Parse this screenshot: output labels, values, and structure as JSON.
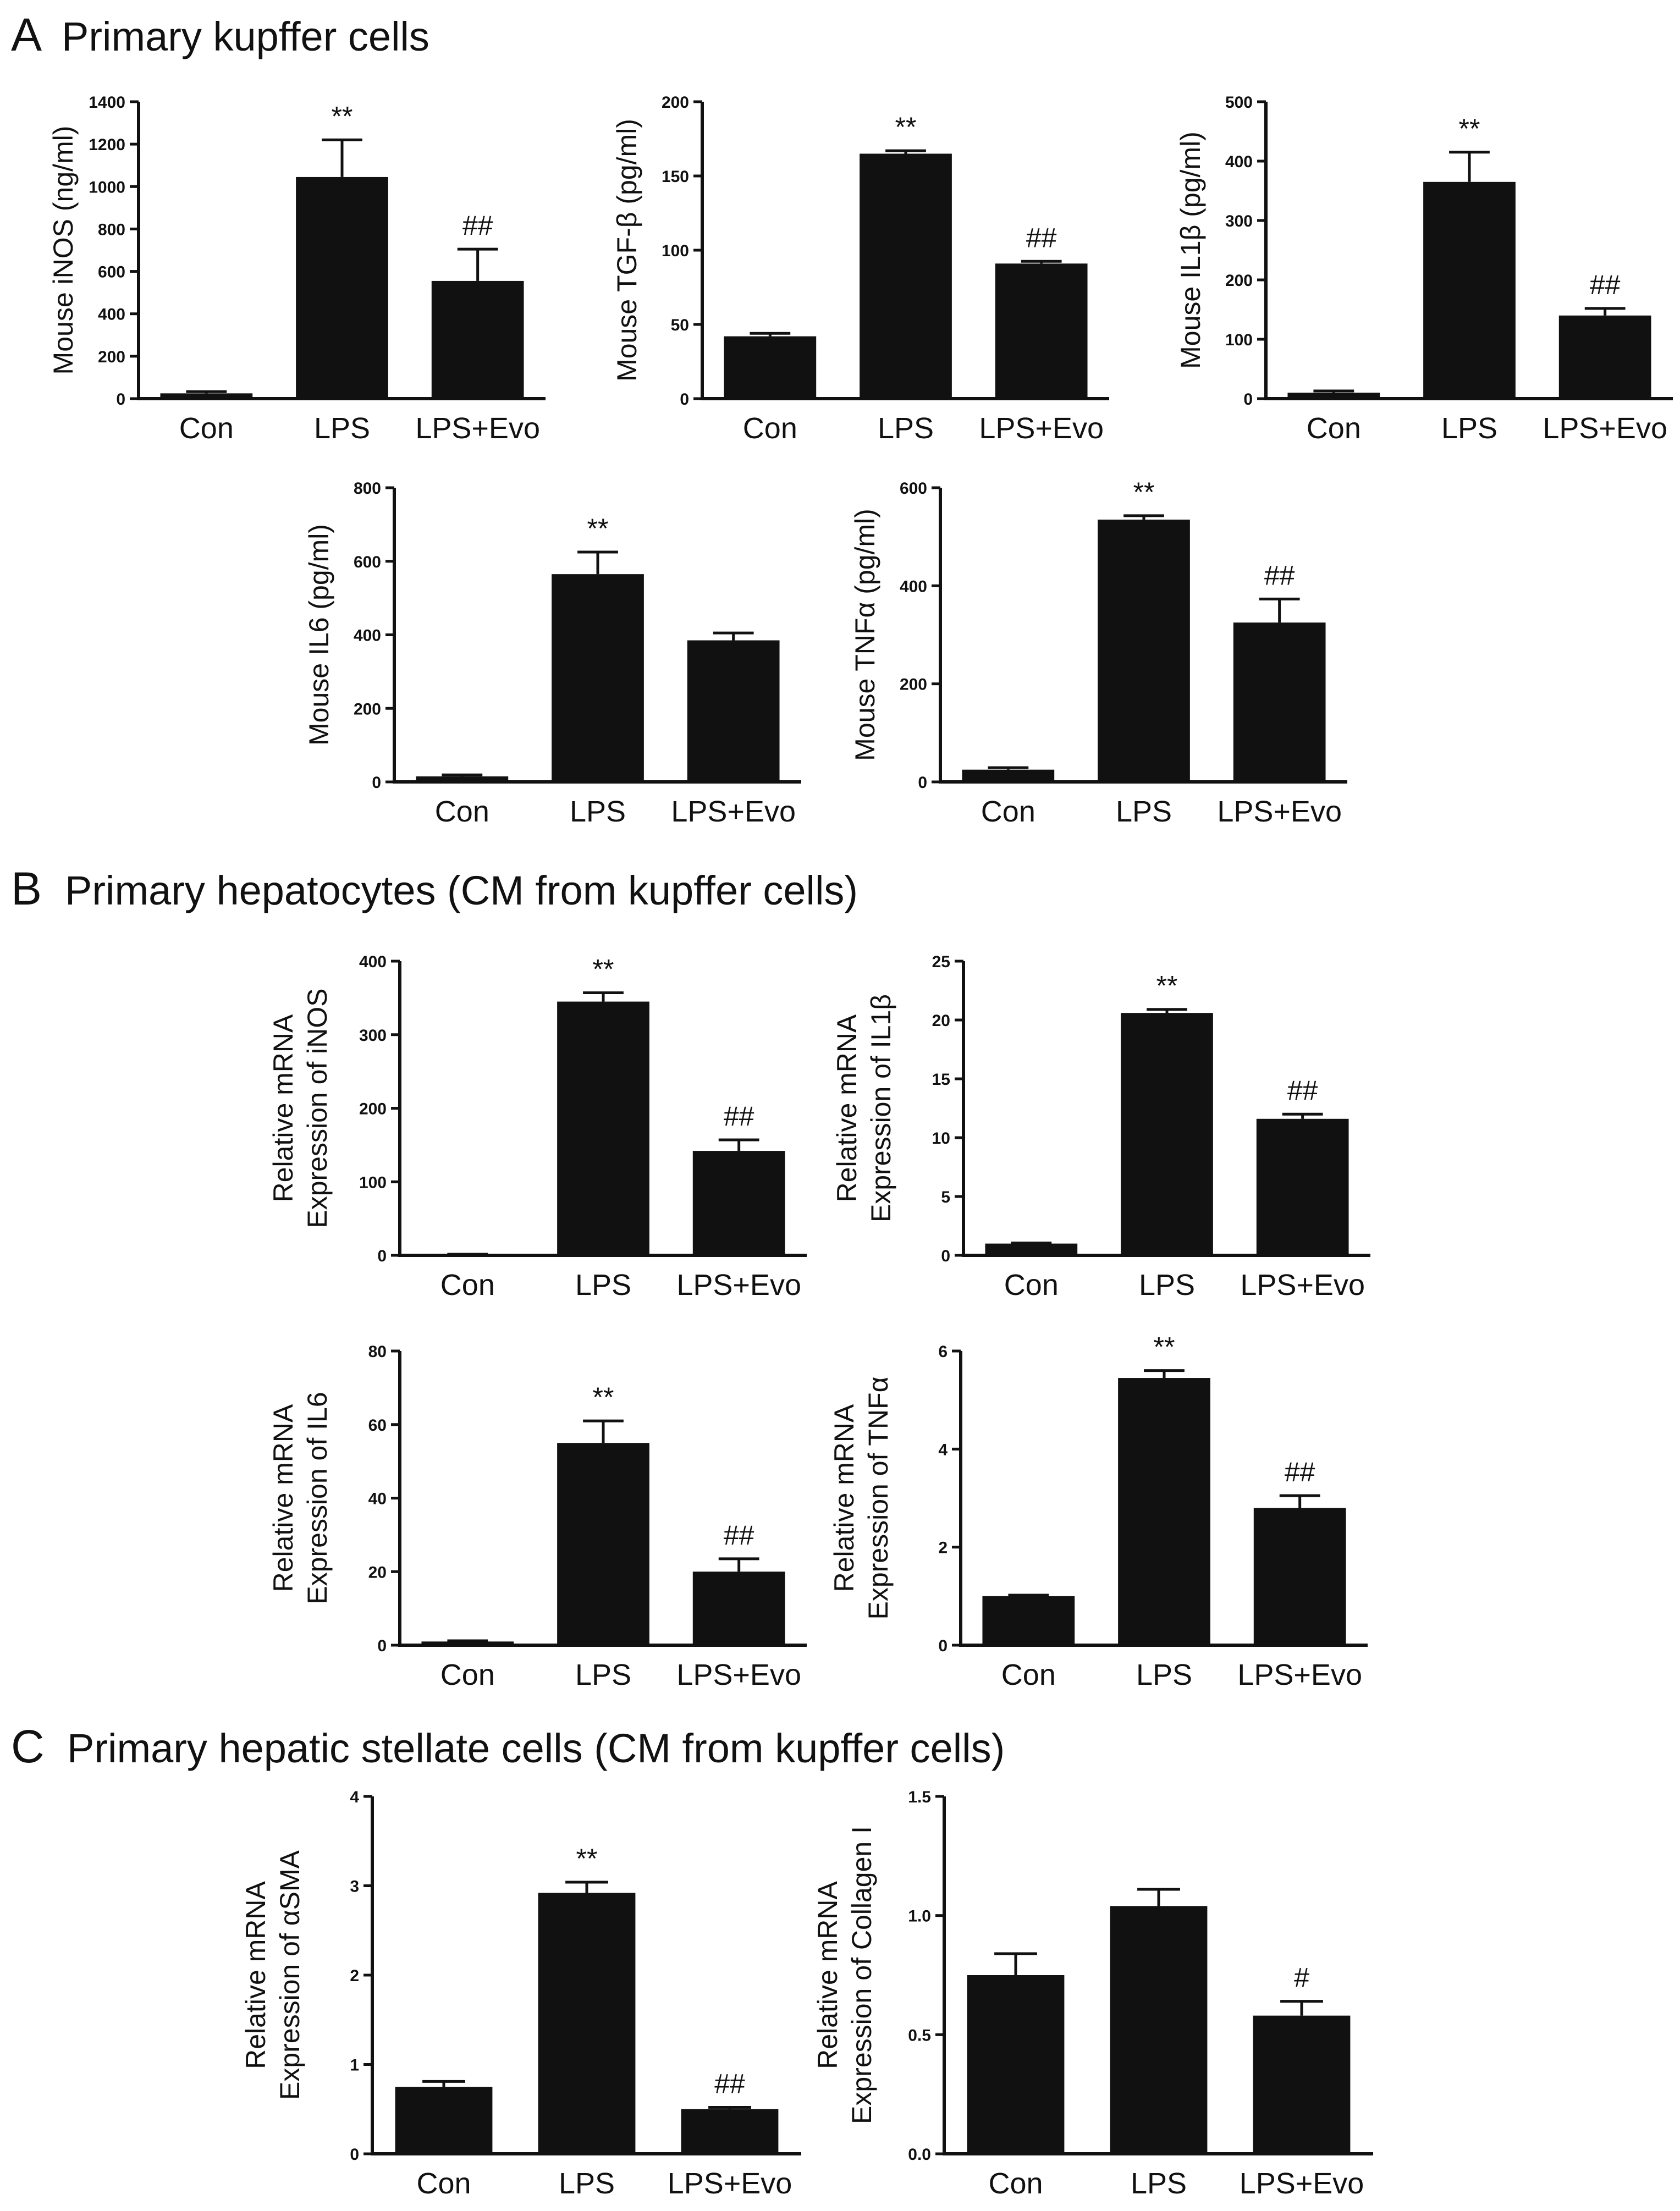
{
  "figure": {
    "sections": [
      {
        "letter": "A",
        "title": "Primary kupffer cells"
      },
      {
        "letter": "B",
        "title": "Primary hepatocytes (CM from kupffer cells)"
      },
      {
        "letter": "C",
        "title": "Primary hepatic stellate cells (CM from kupffer cells)"
      }
    ],
    "bar_color": "#111111"
  },
  "chart_data": [
    {
      "id": "a1",
      "type": "bar",
      "section": "A",
      "ylabel": [
        "Mouse iNOS (ng/ml)"
      ],
      "categories": [
        "Con",
        "LPS",
        "LPS+Evo"
      ],
      "values": [
        25,
        1045,
        555
      ],
      "errors": [
        8,
        175,
        150
      ],
      "annotations": [
        "",
        "**",
        "##"
      ],
      "ylim": [
        0,
        1400
      ],
      "yticks": [
        0,
        200,
        400,
        600,
        800,
        1000,
        1200,
        1400
      ]
    },
    {
      "id": "a2",
      "type": "bar",
      "section": "A",
      "ylabel": [
        "Mouse TGF-β (pg/ml)"
      ],
      "categories": [
        "Con",
        "LPS",
        "LPS+Evo"
      ],
      "values": [
        42,
        165,
        91
      ],
      "errors": [
        2,
        2,
        1.5
      ],
      "annotations": [
        "",
        "**",
        "##"
      ],
      "ylim": [
        0,
        200
      ],
      "yticks": [
        0,
        50,
        100,
        150,
        200
      ]
    },
    {
      "id": "a3",
      "type": "bar",
      "section": "A",
      "ylabel": [
        "Mouse IL1β (pg/ml)"
      ],
      "categories": [
        "Con",
        "LPS",
        "LPS+Evo"
      ],
      "values": [
        10,
        365,
        140
      ],
      "errors": [
        3,
        50,
        12
      ],
      "annotations": [
        "",
        "**",
        "##"
      ],
      "ylim": [
        0,
        500
      ],
      "yticks": [
        0,
        100,
        200,
        300,
        400,
        500
      ]
    },
    {
      "id": "a4",
      "type": "bar",
      "section": "A",
      "ylabel": [
        "Mouse IL6 (pg/ml)"
      ],
      "categories": [
        "Con",
        "LPS",
        "LPS+Evo"
      ],
      "values": [
        15,
        565,
        385
      ],
      "errors": [
        4,
        60,
        20
      ],
      "annotations": [
        "",
        "**",
        ""
      ],
      "ylim": [
        0,
        800
      ],
      "yticks": [
        0,
        200,
        400,
        600,
        800
      ]
    },
    {
      "id": "a5",
      "type": "bar",
      "section": "A",
      "ylabel": [
        "Mouse TNFα (pg/ml)"
      ],
      "categories": [
        "Con",
        "LPS",
        "LPS+Evo"
      ],
      "values": [
        25,
        535,
        325
      ],
      "errors": [
        4,
        8,
        48
      ],
      "annotations": [
        "",
        "**",
        "##"
      ],
      "ylim": [
        0,
        600
      ],
      "yticks": [
        0,
        200,
        400,
        600
      ]
    },
    {
      "id": "b1",
      "type": "bar",
      "section": "B",
      "ylabel": [
        "Relative mRNA",
        "Expression of iNOS"
      ],
      "categories": [
        "Con",
        "LPS",
        "LPS+Evo"
      ],
      "values": [
        1,
        345,
        142
      ],
      "errors": [
        0.5,
        12,
        15
      ],
      "annotations": [
        "",
        "**",
        "##"
      ],
      "ylim": [
        0,
        400
      ],
      "yticks": [
        0,
        100,
        200,
        300,
        400
      ]
    },
    {
      "id": "b2",
      "type": "bar",
      "section": "B",
      "ylabel": [
        "Relative mRNA",
        "Expression of IL1β"
      ],
      "categories": [
        "Con",
        "LPS",
        "LPS+Evo"
      ],
      "values": [
        1,
        20.6,
        11.6
      ],
      "errors": [
        0.05,
        0.3,
        0.4
      ],
      "annotations": [
        "",
        "**",
        "##"
      ],
      "ylim": [
        0,
        25
      ],
      "yticks": [
        0,
        5,
        10,
        15,
        20,
        25
      ]
    },
    {
      "id": "b3",
      "type": "bar",
      "section": "B",
      "ylabel": [
        "Relative mRNA",
        "Expression of IL6"
      ],
      "categories": [
        "Con",
        "LPS",
        "LPS+Evo"
      ],
      "values": [
        1,
        55,
        20
      ],
      "errors": [
        0.2,
        6,
        3.5
      ],
      "annotations": [
        "",
        "**",
        "##"
      ],
      "ylim": [
        0,
        80
      ],
      "yticks": [
        0,
        20,
        40,
        60,
        80
      ]
    },
    {
      "id": "b4",
      "type": "bar",
      "section": "B",
      "ylabel": [
        "Relative mRNA",
        "Expression of TNFα"
      ],
      "categories": [
        "Con",
        "LPS",
        "LPS+Evo"
      ],
      "values": [
        1,
        5.45,
        2.8
      ],
      "errors": [
        0.02,
        0.15,
        0.25
      ],
      "annotations": [
        "",
        "**",
        "##"
      ],
      "ylim": [
        0,
        6
      ],
      "yticks": [
        0,
        2,
        4,
        6
      ]
    },
    {
      "id": "c1",
      "type": "bar",
      "section": "C",
      "ylabel": [
        "Relative mRNA",
        "Expression of αSMA"
      ],
      "categories": [
        "Con",
        "LPS",
        "LPS+Evo"
      ],
      "values": [
        0.75,
        2.92,
        0.5
      ],
      "errors": [
        0.06,
        0.12,
        0.02
      ],
      "annotations": [
        "",
        "**",
        "##"
      ],
      "ylim": [
        0,
        4
      ],
      "yticks": [
        0,
        1,
        2,
        3,
        4
      ]
    },
    {
      "id": "c2",
      "type": "bar",
      "section": "C",
      "ylabel": [
        "Relative mRNA",
        "Expression of Collagen I"
      ],
      "categories": [
        "Con",
        "LPS",
        "LPS+Evo"
      ],
      "values": [
        0.75,
        1.04,
        0.58
      ],
      "errors": [
        0.09,
        0.07,
        0.06
      ],
      "annotations": [
        "",
        "",
        "#"
      ],
      "ylim": [
        0,
        1.5
      ],
      "yticks": [
        0.0,
        0.5,
        1.0,
        1.5
      ],
      "ytick_format": "1dp"
    }
  ]
}
